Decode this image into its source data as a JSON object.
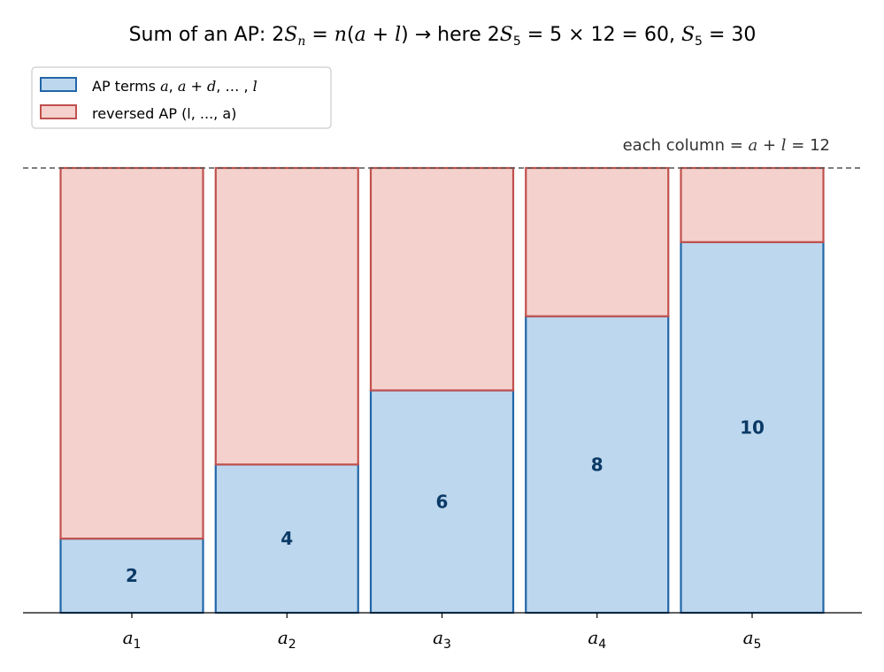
{
  "chart_data": {
    "type": "bar",
    "stacked": true,
    "title": "Sum of an AP: 2Sₙ = n(a + l) → here 2S₅ = 5 × 12 = 60, S₅ = 30",
    "categories": [
      "a1",
      "a2",
      "a3",
      "a4",
      "a5"
    ],
    "tick_labels": [
      {
        "base": "a",
        "sub": "1"
      },
      {
        "base": "a",
        "sub": "2"
      },
      {
        "base": "a",
        "sub": "3"
      },
      {
        "base": "a",
        "sub": "4"
      },
      {
        "base": "a",
        "sub": "5"
      }
    ],
    "series": [
      {
        "name": "AP terms  a,  a + d,  … ,  l",
        "values": [
          2,
          4,
          6,
          8,
          10
        ]
      },
      {
        "name": "reversed AP  (l, ..., a)",
        "values": [
          10,
          8,
          6,
          4,
          2
        ]
      }
    ],
    "data_labels": [
      "2",
      "4",
      "6",
      "8",
      "10"
    ],
    "ylim": [
      0,
      12
    ],
    "reference_line": {
      "y": 12,
      "label": "each column = a + l = 12"
    },
    "legend_position": "top-left",
    "grid": false,
    "xlabel": "",
    "ylabel": ""
  },
  "colors": {
    "ap_fill": "#bdd7ee",
    "ap_edge": "#2166a8",
    "rev_fill": "#f4d1cc",
    "rev_edge": "#c0504d",
    "label": "#0b3a66",
    "refline": "#555555"
  }
}
